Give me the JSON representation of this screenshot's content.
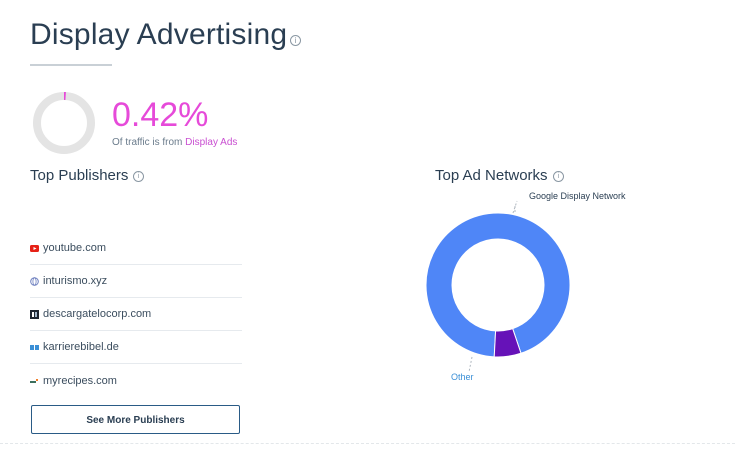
{
  "header": {
    "title": "Display Advertising",
    "info_icon": "info-icon"
  },
  "summary": {
    "percentage": "0.42%",
    "share": 0.0042,
    "subtitle_prefix": "Of traffic is from ",
    "subtitle_highlight": "Display Ads",
    "accent_color": "#e64ad9"
  },
  "publishers": {
    "heading": "Top Publishers",
    "items": [
      {
        "domain": "youtube.com",
        "icon": "youtube-icon"
      },
      {
        "domain": "inturismo.xyz",
        "icon": "globe-icon"
      },
      {
        "domain": "descargatelocorp.com",
        "icon": "dc-logo-icon"
      },
      {
        "domain": "karrierebibel.de",
        "icon": "kb-logo-icon"
      },
      {
        "domain": "myrecipes.com",
        "icon": "mr-logo-icon"
      }
    ],
    "more_button": "See More Publishers"
  },
  "ad_networks": {
    "heading": "Top Ad Networks",
    "labels": {
      "main": "Google Display Network",
      "other": "Other"
    }
  },
  "chart_data": {
    "type": "pie",
    "title": "Top Ad Networks",
    "categories": [
      "Google Display Network",
      "Other"
    ],
    "values": [
      94,
      6
    ],
    "colors": [
      "#4f86f7",
      "#6612b8"
    ]
  }
}
